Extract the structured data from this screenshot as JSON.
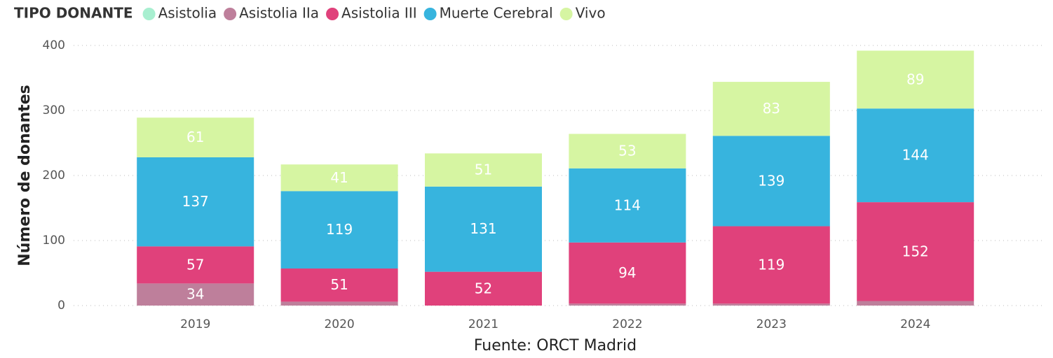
{
  "chart_data": {
    "type": "stacked_bar",
    "legend_title": "TIPO DONANTE",
    "y_label": "Número de donantes",
    "x_label": "Fuente: ORCT Madrid",
    "categories": [
      "2019",
      "2020",
      "2021",
      "2022",
      "2023",
      "2024"
    ],
    "series": [
      {
        "name": "Asistolia",
        "color": "#a8efd0",
        "values": [
          null,
          null,
          null,
          null,
          null,
          null
        ]
      },
      {
        "name": "Asistolia IIa",
        "color": "#be7f9b",
        "values": [
          34,
          6,
          0,
          3,
          3,
          7
        ]
      },
      {
        "name": "Asistolia III",
        "color": "#e0417b",
        "values": [
          57,
          51,
          52,
          94,
          119,
          152
        ]
      },
      {
        "name": "Muerte Cerebral",
        "color": "#37b4de",
        "values": [
          137,
          119,
          131,
          114,
          139,
          144
        ]
      },
      {
        "name": "Vivo",
        "color": "#d6f5a2",
        "values": [
          61,
          41,
          51,
          53,
          83,
          89
        ]
      }
    ],
    "ylim": [
      0,
      400
    ],
    "yticks": [
      0,
      100,
      200,
      300,
      400
    ],
    "grid": true,
    "legend": "top-left"
  }
}
